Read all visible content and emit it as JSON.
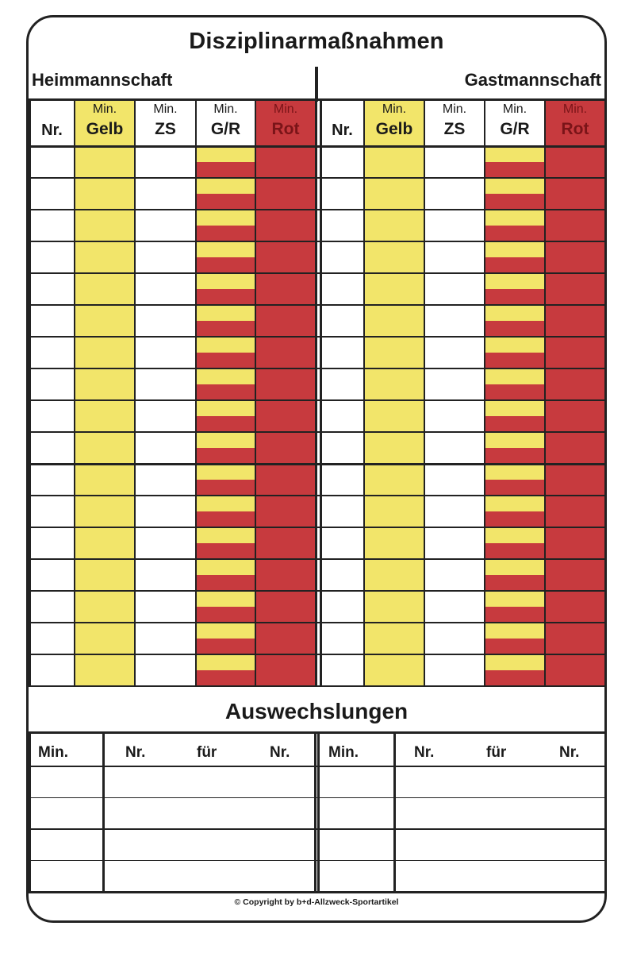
{
  "title": "Disziplinarmaßnahmen",
  "teams": {
    "home": "Heimmannschaft",
    "away": "Gastmannschaft"
  },
  "discipline_columns": [
    {
      "key": "nr",
      "top": "",
      "bottom": "Nr."
    },
    {
      "key": "gelb",
      "top": "Min.",
      "bottom": "Gelb"
    },
    {
      "key": "zs",
      "top": "Min.",
      "bottom": "ZS"
    },
    {
      "key": "gr",
      "top": "Min.",
      "bottom": "G/R"
    },
    {
      "key": "rot",
      "top": "Min.",
      "bottom": "Rot"
    }
  ],
  "discipline_rows": 17,
  "substitutions": {
    "title": "Auswechslungen",
    "columns": [
      "Min.",
      "Nr.",
      "für",
      "Nr."
    ],
    "rows": 4
  },
  "colors": {
    "yellow": "#f2e56a",
    "red": "#c73a3e",
    "line": "#222222",
    "rot_label": "#7a1418"
  },
  "copyright": "© Copyright by b+d-Allzweck-Sportartikel"
}
